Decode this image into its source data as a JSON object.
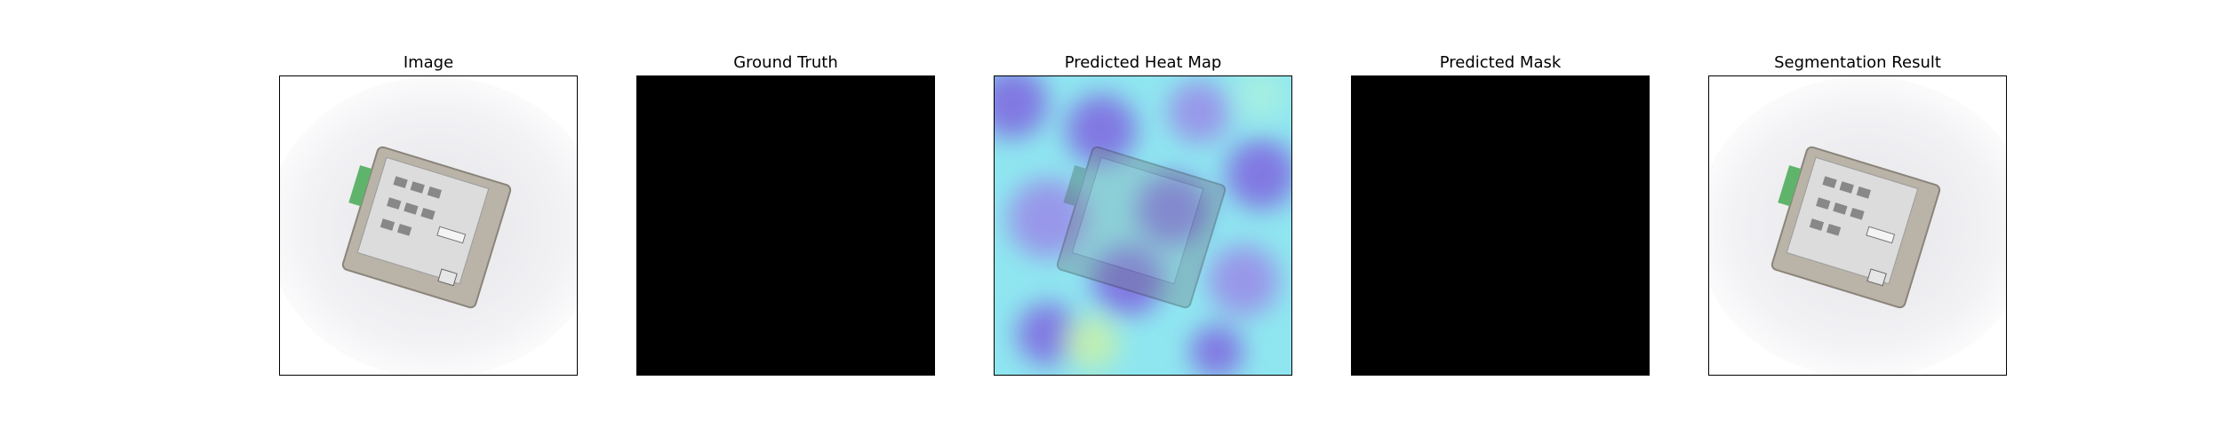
{
  "panels": [
    {
      "title": "Image"
    },
    {
      "title": "Ground Truth"
    },
    {
      "title": "Predicted Heat Map"
    },
    {
      "title": "Predicted Mask"
    },
    {
      "title": "Segmentation Result"
    }
  ],
  "colors": {
    "mask": "#000000",
    "heat_low": "#8fe6f0",
    "heat_high": "#7f66e0",
    "device_body": "#b9b3a8",
    "terminal": "#5fb36a"
  }
}
